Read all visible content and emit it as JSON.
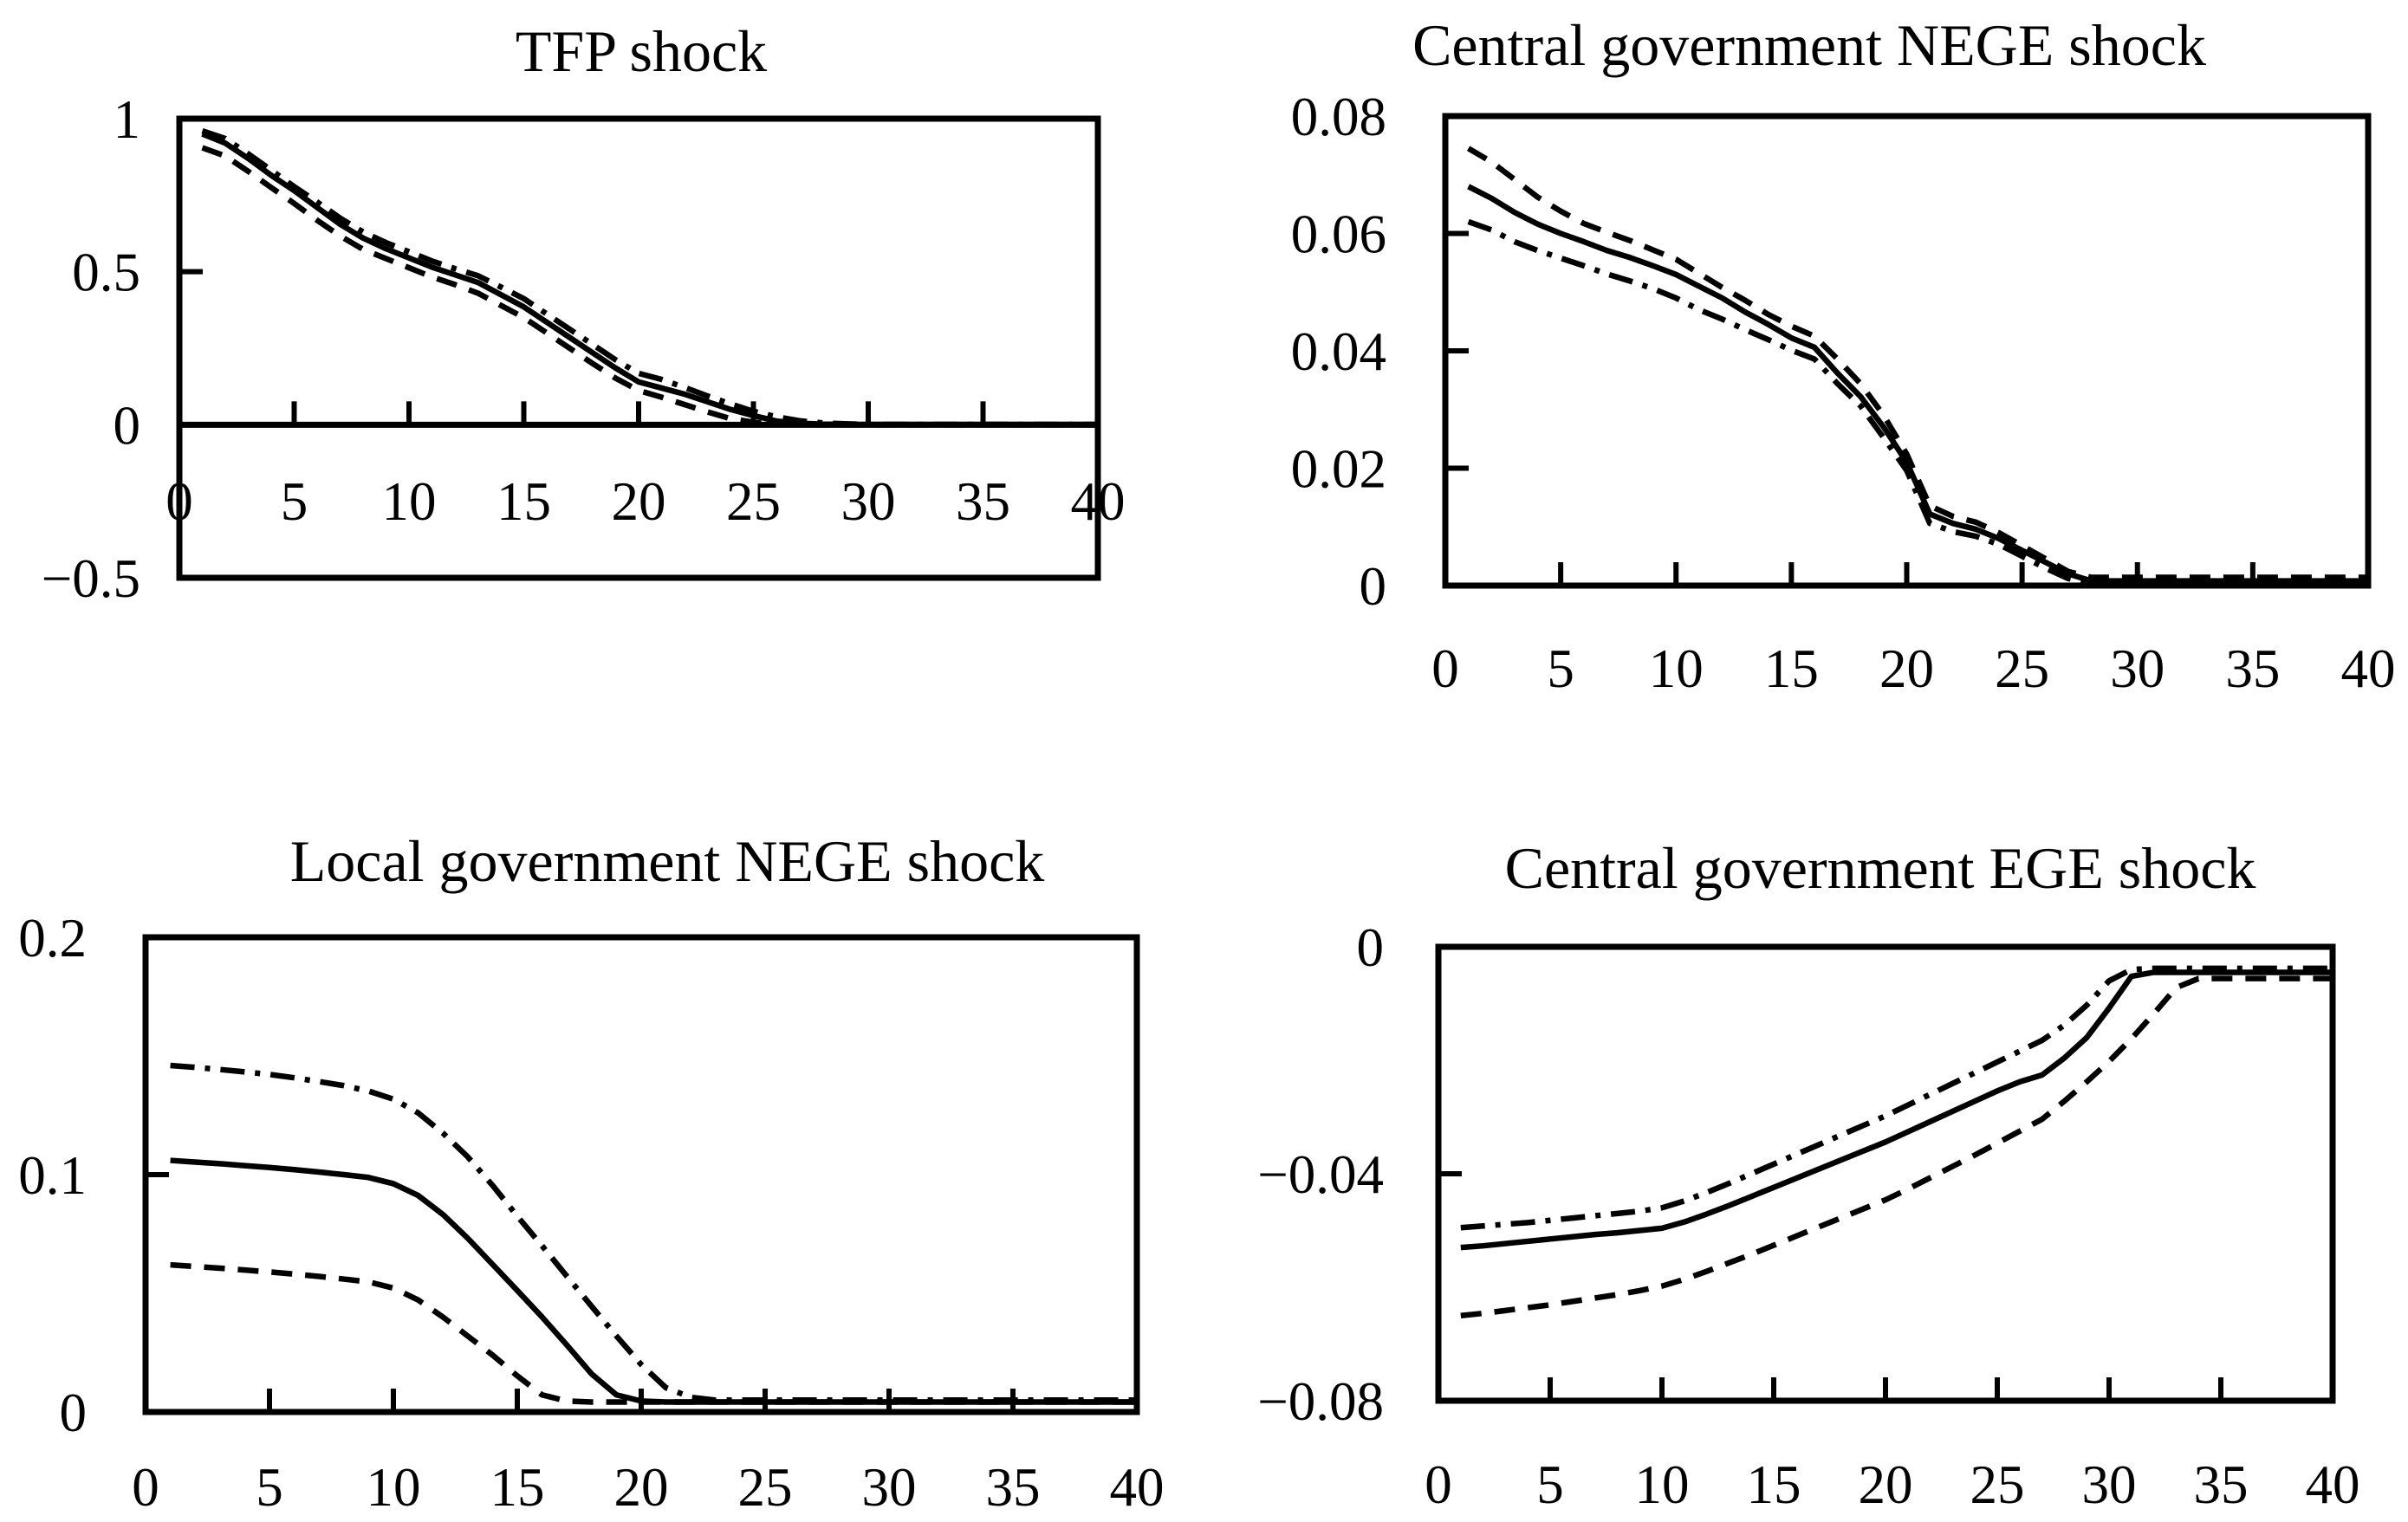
{
  "figure": {
    "background_color": "#ffffff",
    "line_color": "#000000"
  },
  "chart_data": [
    {
      "type": "line",
      "title": "TFP shock",
      "xlabel": "",
      "ylabel": "",
      "xlim": [
        0,
        40
      ],
      "ylim": [
        -0.5,
        1
      ],
      "grid": false,
      "legend": "none",
      "x_ticks": [
        0,
        5,
        10,
        15,
        20,
        25,
        30,
        35,
        40
      ],
      "x_tick_labels": [
        "0",
        "5",
        "10",
        "15",
        "20",
        "25",
        "30",
        "35",
        "40"
      ],
      "y_tick_labels": [
        {
          "value": 1,
          "label": "1"
        },
        {
          "value": 0.5,
          "label": "0.5"
        },
        {
          "value": 0,
          "label": "0"
        },
        {
          "value": -0.5,
          "label": "−0.5"
        }
      ],
      "x_values": [
        1,
        2,
        3,
        4,
        5,
        6,
        7,
        8,
        9,
        10,
        11,
        12,
        13,
        14,
        15,
        16,
        17,
        18,
        19,
        20,
        21,
        22,
        23,
        24,
        25,
        26,
        27,
        28,
        29,
        30,
        31,
        32,
        33,
        34,
        35,
        36,
        37,
        38,
        39,
        40
      ],
      "series": [
        {
          "name": "solid",
          "line_style": "solid",
          "values": [
            0.95,
            0.92,
            0.87,
            0.815,
            0.765,
            0.71,
            0.655,
            0.61,
            0.575,
            0.545,
            0.515,
            0.49,
            0.465,
            0.425,
            0.385,
            0.335,
            0.285,
            0.235,
            0.185,
            0.14,
            0.12,
            0.1,
            0.075,
            0.05,
            0.03,
            0.012,
            0.005,
            0.002,
            0.001,
            0.001,
            0.001,
            0.001,
            0.001,
            0.001,
            0.001,
            0.001,
            0.001,
            0.001,
            0.001,
            0.001
          ]
        },
        {
          "name": "dash-dot",
          "line_style": "dash-dot",
          "values": [
            0.96,
            0.935,
            0.885,
            0.832,
            0.778,
            0.728,
            0.675,
            0.63,
            0.595,
            0.565,
            0.535,
            0.51,
            0.487,
            0.45,
            0.412,
            0.362,
            0.312,
            0.262,
            0.212,
            0.168,
            0.148,
            0.122,
            0.094,
            0.068,
            0.044,
            0.026,
            0.013,
            0.006,
            0.003,
            0.001,
            0.001,
            0.001,
            0.001,
            0.001,
            0.001,
            0.001,
            0.001,
            0.001,
            0.001,
            0.001
          ]
        },
        {
          "name": "dashed",
          "line_style": "dashed",
          "values": [
            0.905,
            0.878,
            0.828,
            0.775,
            0.723,
            0.668,
            0.617,
            0.573,
            0.543,
            0.513,
            0.483,
            0.458,
            0.43,
            0.39,
            0.35,
            0.3,
            0.25,
            0.2,
            0.152,
            0.112,
            0.09,
            0.066,
            0.042,
            0.02,
            0.008,
            0.002,
            0.001,
            0,
            0,
            0,
            0,
            0,
            0,
            0,
            0,
            0,
            0,
            0,
            0,
            0
          ]
        }
      ]
    },
    {
      "type": "line",
      "title": "Central government NEGE shock",
      "xlabel": "",
      "ylabel": "",
      "xlim": [
        0,
        40
      ],
      "ylim": [
        0,
        0.08
      ],
      "grid": false,
      "legend": "none",
      "x_ticks": [
        0,
        5,
        10,
        15,
        20,
        25,
        30,
        35,
        40
      ],
      "x_tick_labels": [
        "0",
        "5",
        "10",
        "15",
        "20",
        "25",
        "30",
        "35",
        "40"
      ],
      "y_tick_labels": [
        {
          "value": 0.08,
          "label": "0.08"
        },
        {
          "value": 0.06,
          "label": "0.06"
        },
        {
          "value": 0.04,
          "label": "0.04"
        },
        {
          "value": 0.02,
          "label": "0.02"
        },
        {
          "value": 0,
          "label": "0"
        }
      ],
      "x_values": [
        1,
        2,
        3,
        4,
        5,
        6,
        7,
        8,
        9,
        10,
        11,
        12,
        13,
        14,
        15,
        16,
        17,
        18,
        19,
        20,
        21,
        22,
        23,
        24,
        25,
        26,
        27,
        28,
        29,
        30,
        31,
        32,
        33,
        34,
        35,
        36,
        37,
        38,
        39,
        40
      ],
      "series": [
        {
          "name": "solid",
          "line_style": "solid",
          "values": [
            0.068,
            0.066,
            0.0636,
            0.0616,
            0.06,
            0.0586,
            0.0571,
            0.0559,
            0.0545,
            0.053,
            0.051,
            0.049,
            0.0466,
            0.0445,
            0.0422,
            0.0406,
            0.0362,
            0.0322,
            0.027,
            0.021,
            0.0122,
            0.0106,
            0.0096,
            0.008,
            0.006,
            0.004,
            0.002,
            0.0008,
            0.0008,
            0.0008,
            0.0008,
            0.0008,
            0.0008,
            0.0008,
            0.0008,
            0.0008,
            0.0008,
            0.0008,
            0.0008,
            0.0008
          ]
        },
        {
          "name": "dashed",
          "line_style": "dashed",
          "values": [
            0.0745,
            0.0722,
            0.0692,
            0.0662,
            0.0638,
            0.0617,
            0.0602,
            0.0588,
            0.0572,
            0.0556,
            0.0532,
            0.0508,
            0.0486,
            0.0462,
            0.0442,
            0.0425,
            0.0386,
            0.0344,
            0.029,
            0.0224,
            0.0136,
            0.0118,
            0.0108,
            0.009,
            0.0068,
            0.0046,
            0.0024,
            0.0014,
            0.0014,
            0.0014,
            0.0014,
            0.0014,
            0.0014,
            0.0014,
            0.0014,
            0.0014,
            0.0014,
            0.0014,
            0.0014,
            0.0014
          ]
        },
        {
          "name": "dash-dot",
          "line_style": "dash-dot",
          "values": [
            0.062,
            0.0606,
            0.0586,
            0.0571,
            0.0558,
            0.0545,
            0.0531,
            0.0519,
            0.0506,
            0.049,
            0.047,
            0.0454,
            0.0436,
            0.0419,
            0.0401,
            0.0386,
            0.0344,
            0.0306,
            0.0252,
            0.0196,
            0.0106,
            0.0092,
            0.0084,
            0.007,
            0.005,
            0.003,
            0.0012,
            0.0003,
            0.0003,
            0.0003,
            0.0003,
            0.0003,
            0.0003,
            0.0003,
            0.0003,
            0.0003,
            0.0003,
            0.0003,
            0.0003,
            0.0003
          ]
        }
      ]
    },
    {
      "type": "line",
      "title": "Local government NEGE shock",
      "xlabel": "",
      "ylabel": "",
      "xlim": [
        0,
        40
      ],
      "ylim": [
        0,
        0.2
      ],
      "grid": false,
      "legend": "none",
      "x_ticks": [
        0,
        5,
        10,
        15,
        20,
        25,
        30,
        35,
        40
      ],
      "x_tick_labels": [
        "0",
        "5",
        "10",
        "15",
        "20",
        "25",
        "30",
        "35",
        "40"
      ],
      "y_tick_labels": [
        {
          "value": 0.2,
          "label": "0.2"
        },
        {
          "value": 0.1,
          "label": "0.1"
        },
        {
          "value": 0,
          "label": "0"
        }
      ],
      "x_values": [
        1,
        2,
        3,
        4,
        5,
        6,
        7,
        8,
        9,
        10,
        11,
        12,
        13,
        14,
        15,
        16,
        17,
        18,
        19,
        20,
        21,
        22,
        23,
        24,
        25,
        26,
        27,
        28,
        29,
        30,
        31,
        32,
        33,
        34,
        35,
        36,
        37,
        38,
        39,
        40
      ],
      "series": [
        {
          "name": "solid",
          "line_style": "solid",
          "values": [
            0.106,
            0.1053,
            0.1046,
            0.1038,
            0.103,
            0.1021,
            0.1011,
            0.1,
            0.0988,
            0.0962,
            0.0912,
            0.0832,
            0.0732,
            0.0622,
            0.0512,
            0.04,
            0.0282,
            0.016,
            0.0072,
            0.0046,
            0.0042,
            0.0042,
            0.0042,
            0.0042,
            0.0042,
            0.0042,
            0.0042,
            0.0042,
            0.0042,
            0.0042,
            0.0042,
            0.0042,
            0.0042,
            0.0042,
            0.0042,
            0.0042,
            0.0042,
            0.0042,
            0.0042,
            0.0042
          ]
        },
        {
          "name": "dash-dot",
          "line_style": "dash-dot",
          "values": [
            0.146,
            0.1452,
            0.1443,
            0.1433,
            0.1422,
            0.1408,
            0.1392,
            0.1375,
            0.1352,
            0.1318,
            0.126,
            0.1175,
            0.1075,
            0.0955,
            0.0825,
            0.07,
            0.0572,
            0.0445,
            0.032,
            0.02,
            0.0102,
            0.0062,
            0.005,
            0.005,
            0.005,
            0.005,
            0.005,
            0.005,
            0.005,
            0.005,
            0.005,
            0.005,
            0.005,
            0.005,
            0.005,
            0.005,
            0.005,
            0.005,
            0.005,
            0.005
          ]
        },
        {
          "name": "dashed",
          "line_style": "dashed",
          "values": [
            0.062,
            0.0613,
            0.0606,
            0.0598,
            0.059,
            0.0581,
            0.0571,
            0.056,
            0.0548,
            0.0522,
            0.0472,
            0.04,
            0.032,
            0.024,
            0.0152,
            0.0072,
            0.0046,
            0.0042,
            0.0042,
            0.0042,
            0.0042,
            0.0042,
            0.0042,
            0.0042,
            0.0042,
            0.0042,
            0.0042,
            0.0042,
            0.0042,
            0.0042,
            0.0042,
            0.0042,
            0.0042,
            0.0042,
            0.0042,
            0.0042,
            0.0042,
            0.0042,
            0.0042,
            0.0042
          ]
        }
      ]
    },
    {
      "type": "line",
      "title": "Central government EGE shock",
      "xlabel": "",
      "ylabel": "",
      "xlim": [
        0,
        40
      ],
      "ylim": [
        -0.08,
        0
      ],
      "grid": false,
      "legend": "none",
      "x_ticks": [
        0,
        5,
        10,
        15,
        20,
        25,
        30,
        35,
        40
      ],
      "x_tick_labels": [
        "0",
        "5",
        "10",
        "15",
        "20",
        "25",
        "30",
        "35",
        "40"
      ],
      "y_tick_labels": [
        {
          "value": 0,
          "label": "0"
        },
        {
          "value": -0.04,
          "label": "−0.04"
        },
        {
          "value": -0.08,
          "label": "−0.08"
        }
      ],
      "x_values": [
        1,
        2,
        3,
        4,
        5,
        6,
        7,
        8,
        9,
        10,
        11,
        12,
        13,
        14,
        15,
        16,
        17,
        18,
        19,
        20,
        21,
        22,
        23,
        24,
        25,
        26,
        27,
        28,
        29,
        30,
        31,
        32,
        33,
        34,
        35,
        36,
        37,
        38,
        39,
        40
      ],
      "series": [
        {
          "name": "solid",
          "line_style": "solid",
          "values": [
            -0.053,
            -0.0527,
            -0.0523,
            -0.0519,
            -0.0515,
            -0.0511,
            -0.0507,
            -0.0504,
            -0.05,
            -0.0496,
            -0.0485,
            -0.0471,
            -0.0456,
            -0.044,
            -0.0424,
            -0.0408,
            -0.0392,
            -0.0376,
            -0.036,
            -0.0344,
            -0.0326,
            -0.0308,
            -0.029,
            -0.0272,
            -0.0254,
            -0.0238,
            -0.0226,
            -0.0196,
            -0.016,
            -0.0108,
            -0.0052,
            -0.0045,
            -0.0045,
            -0.0045,
            -0.0045,
            -0.0045,
            -0.0045,
            -0.0045,
            -0.0045,
            -0.0045
          ]
        },
        {
          "name": "dash-dot",
          "line_style": "dash-dot",
          "values": [
            -0.0495,
            -0.0492,
            -0.0489,
            -0.0486,
            -0.0482,
            -0.0478,
            -0.0474,
            -0.047,
            -0.0466,
            -0.046,
            -0.0448,
            -0.0433,
            -0.0417,
            -0.04,
            -0.0383,
            -0.0366,
            -0.0349,
            -0.0332,
            -0.0315,
            -0.0298,
            -0.0279,
            -0.026,
            -0.0241,
            -0.0222,
            -0.0203,
            -0.0184,
            -0.0165,
            -0.0138,
            -0.0103,
            -0.006,
            -0.004,
            -0.0038,
            -0.0038,
            -0.0038,
            -0.0038,
            -0.0038,
            -0.0038,
            -0.0038,
            -0.0038,
            -0.0038
          ]
        },
        {
          "name": "dashed",
          "line_style": "dashed",
          "values": [
            -0.065,
            -0.0646,
            -0.0641,
            -0.0636,
            -0.0631,
            -0.0625,
            -0.0619,
            -0.0613,
            -0.0606,
            -0.0598,
            -0.0586,
            -0.0572,
            -0.0557,
            -0.0542,
            -0.0526,
            -0.051,
            -0.0494,
            -0.0478,
            -0.0462,
            -0.0446,
            -0.0427,
            -0.0407,
            -0.0387,
            -0.0367,
            -0.0346,
            -0.0325,
            -0.0304,
            -0.0272,
            -0.0238,
            -0.0202,
            -0.0162,
            -0.0118,
            -0.0072,
            -0.0056,
            -0.0056,
            -0.0056,
            -0.0056,
            -0.0056,
            -0.0056,
            -0.0056
          ]
        }
      ]
    }
  ]
}
